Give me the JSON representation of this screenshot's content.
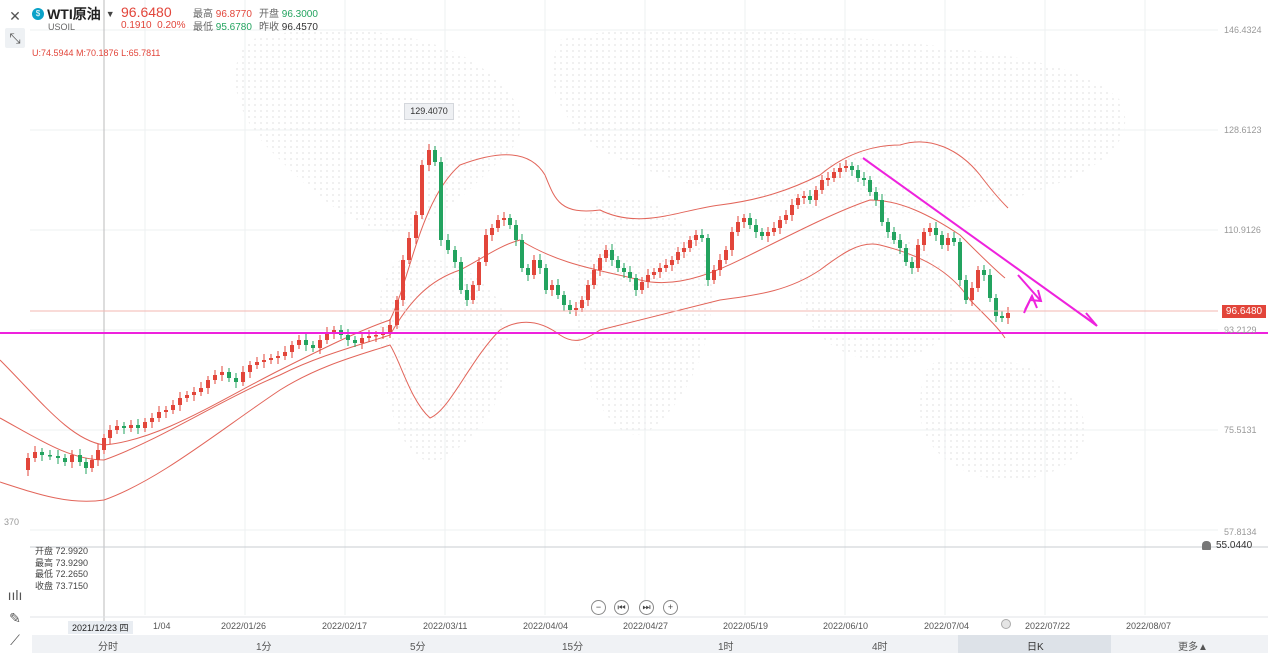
{
  "header": {
    "symbol_name": "WTI原油",
    "symbol_code": "USOIL",
    "last_price": "96.6480",
    "change": "0.1910",
    "change_pct": "0.20%",
    "high_label": "最高",
    "high": "96.8770",
    "open_label": "开盘",
    "open": "96.3000",
    "low_label": "最低",
    "low": "95.6780",
    "prev_close_label": "昨收",
    "prev_close": "96.4570"
  },
  "boll": {
    "text": "U:74.5944  M:70.1876  L:65.7811"
  },
  "ohlc_panel": {
    "open": "开盘 72.9920",
    "high": "最高 73.9290",
    "low": "最低 72.2650",
    "close": "收盘 73.7150"
  },
  "yaxis": {
    "ticks": [
      "146.4324",
      "128.6123",
      "110.9126",
      "93.2129",
      "75.5131",
      "57.8134"
    ],
    "current_price": "96.6480",
    "alert_price": "55.0440",
    "partial_left_label": "370"
  },
  "peak_label": "129.4070",
  "xaxis": {
    "crosshair_date": "2021/12/23 四",
    "dates": [
      "1/04",
      "2022/01/26",
      "2022/02/17",
      "2022/03/11",
      "2022/04/04",
      "2022/04/27",
      "2022/05/19",
      "2022/06/10",
      "2022/07/04",
      "2022/07/22",
      "2022/08/07"
    ]
  },
  "timeframes": [
    "分时",
    "1分",
    "5分",
    "15分",
    "1时",
    "4时",
    "日K",
    "更多▲"
  ],
  "active_timeframe": "日K",
  "nav_buttons": [
    "−",
    "⏮",
    "⏭",
    "+"
  ],
  "colors": {
    "up": "#e2453a",
    "down": "#23a35f",
    "annotation": "#ee22dd",
    "boll": "#e2655a"
  },
  "icons": {
    "close": "close-icon",
    "tool": "cursor-tool-icon",
    "indicator": "indicator-icon",
    "pencil": "pencil-icon",
    "line": "line-tool-icon"
  }
}
